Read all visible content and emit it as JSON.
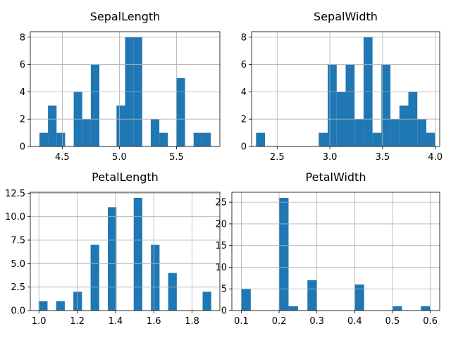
{
  "chart_data": [
    {
      "type": "bar",
      "title": "SepalLength",
      "xlim": [
        4.22,
        5.88
      ],
      "ylim": [
        0,
        8.4
      ],
      "grid": true,
      "bar_width": 0.075,
      "xticks": [
        4.5,
        5.0,
        5.5
      ],
      "xtick_labels": [
        "4.5",
        "5.0",
        "5.5"
      ],
      "yticks": [
        0,
        2,
        4,
        6,
        8
      ],
      "ytick_labels": [
        "0",
        "2",
        "4",
        "6",
        "8"
      ],
      "x": [
        4.3,
        4.375,
        4.45,
        4.6,
        4.675,
        4.75,
        4.975,
        5.05,
        5.125,
        5.275,
        5.35,
        5.5,
        5.65,
        5.725
      ],
      "values": [
        1,
        3,
        1,
        4,
        2,
        6,
        3,
        8,
        8,
        2,
        1,
        5,
        1,
        1
      ],
      "bar_x_fix": [
        4.3,
        4.375,
        4.45,
        4.6,
        4.675,
        4.75,
        4.825,
        4.9,
        4.975,
        5.05,
        5.2,
        5.275,
        5.35,
        5.5,
        5.65,
        5.725
      ],
      "bar_values_fix": [
        1,
        3,
        1,
        4,
        2,
        2,
        6,
        0,
        3,
        8,
        2,
        1,
        5,
        0,
        1,
        1
      ]
    },
    {
      "type": "bar",
      "title": "SepalWidth",
      "xlim": [
        2.2575,
        4.0425
      ],
      "ylim": [
        0,
        8.4
      ],
      "grid": true,
      "bar_width": 0.085,
      "xticks": [
        2.5,
        3.0,
        3.5,
        4.0
      ],
      "xtick_labels": [
        "2.5",
        "3.0",
        "3.5",
        "4.0"
      ],
      "yticks": [
        0,
        2,
        4,
        6,
        8
      ],
      "ytick_labels": [
        "0",
        "2",
        "4",
        "6",
        "8"
      ],
      "x": [
        2.3,
        2.895,
        2.98,
        3.065,
        3.15,
        3.235,
        3.32,
        3.405,
        3.49,
        3.575,
        3.66,
        3.745,
        3.83,
        3.915
      ],
      "values": [
        1,
        1,
        6,
        4,
        6,
        2,
        8,
        1,
        6,
        2,
        3,
        4,
        2,
        1
      ]
    },
    {
      "type": "bar",
      "title": "PetalLength",
      "xlim": [
        0.955,
        1.945
      ],
      "ylim": [
        0,
        12.6
      ],
      "grid": true,
      "bar_width": 0.045,
      "xticks": [
        1.0,
        1.2,
        1.4,
        1.6,
        1.8
      ],
      "xtick_labels": [
        "1.0",
        "1.2",
        "1.4",
        "1.6",
        "1.8"
      ],
      "yticks": [
        0,
        2.5,
        5.0,
        7.5,
        10.0,
        12.5
      ],
      "ytick_labels": [
        "0.0",
        "2.5",
        "5.0",
        "7.5",
        "10.0",
        "12.5"
      ],
      "x": [
        1.0,
        1.09,
        1.18,
        1.27,
        1.36,
        1.495,
        1.585,
        1.675,
        1.855
      ],
      "values": [
        1,
        1,
        2,
        7,
        11,
        12,
        7,
        4,
        2
      ]
    },
    {
      "type": "bar",
      "title": "PetalWidth",
      "xlim": [
        0.075,
        0.625
      ],
      "ylim": [
        0,
        27.3
      ],
      "grid": true,
      "bar_width": 0.025,
      "xticks": [
        0.1,
        0.2,
        0.3,
        0.4,
        0.5,
        0.6
      ],
      "xtick_labels": [
        "0.1",
        "0.2",
        "0.3",
        "0.4",
        "0.5",
        "0.6"
      ],
      "yticks": [
        0,
        5,
        10,
        15,
        20,
        25
      ],
      "ytick_labels": [
        "0",
        "5",
        "10",
        "15",
        "20",
        "25"
      ],
      "x": [
        0.1,
        0.2,
        0.225,
        0.275,
        0.4,
        0.5,
        0.575
      ],
      "values": [
        5,
        26,
        1,
        7,
        6,
        1,
        1
      ]
    }
  ],
  "colors": {
    "bar": "#1f77b4",
    "grid": "#b0b0b0",
    "axis": "#000000"
  }
}
